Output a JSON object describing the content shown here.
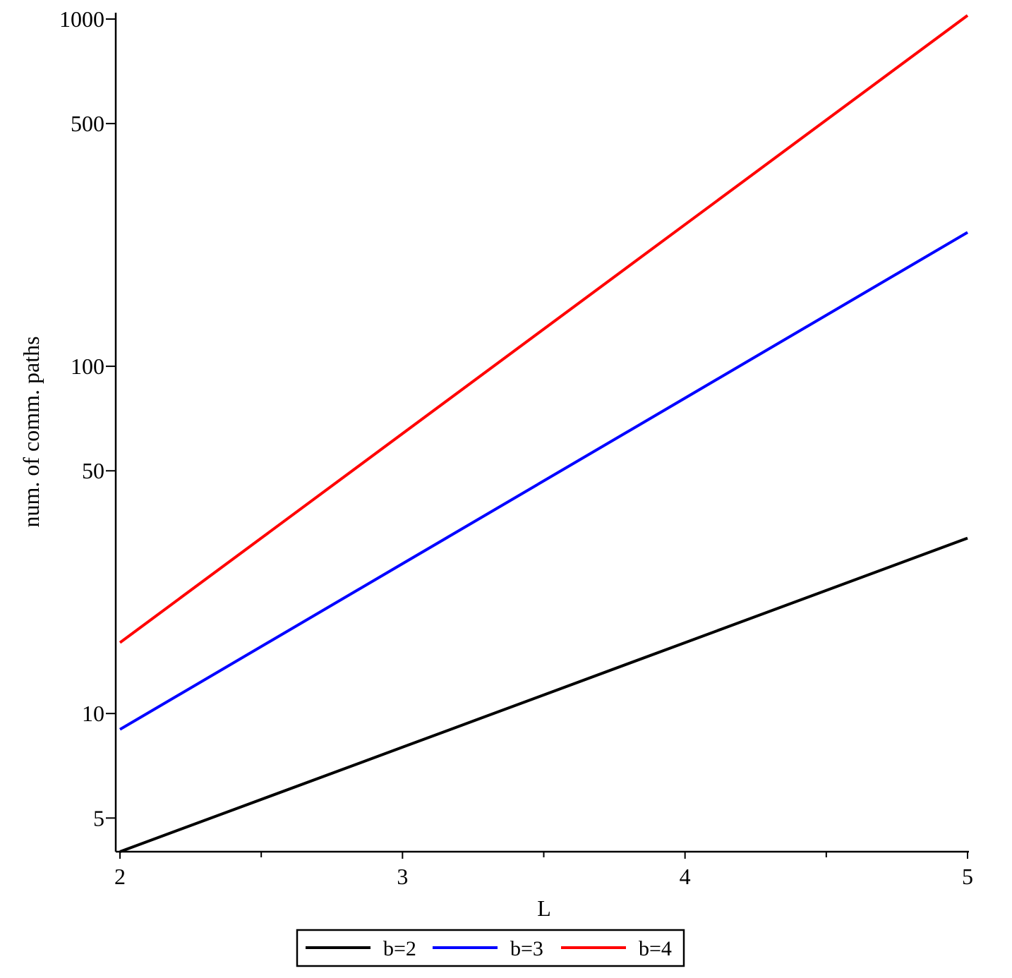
{
  "chart_data": {
    "type": "line",
    "title": "",
    "xlabel": "L",
    "ylabel": "num. of comm. paths",
    "xlim": [
      2,
      5
    ],
    "ylim": [
      4,
      1000
    ],
    "y_scale": "log",
    "x_ticks": [
      2,
      3,
      4,
      5
    ],
    "x_minor_ticks": [
      2.5,
      3.5,
      4.5
    ],
    "y_ticks": [
      5,
      10,
      50,
      100,
      500,
      1000
    ],
    "grid": false,
    "legend_position": "bottom",
    "series": [
      {
        "name": "b=2",
        "color": "#000000",
        "x": [
          2,
          3,
          4,
          5
        ],
        "y": [
          4,
          8,
          16,
          32
        ]
      },
      {
        "name": "b=3",
        "color": "#0000ff",
        "x": [
          2,
          3,
          4,
          5
        ],
        "y": [
          9,
          27,
          81,
          243
        ]
      },
      {
        "name": "b=4",
        "color": "#ff0000",
        "x": [
          2,
          3,
          4,
          5
        ],
        "y": [
          16,
          64,
          256,
          1024
        ]
      }
    ]
  }
}
